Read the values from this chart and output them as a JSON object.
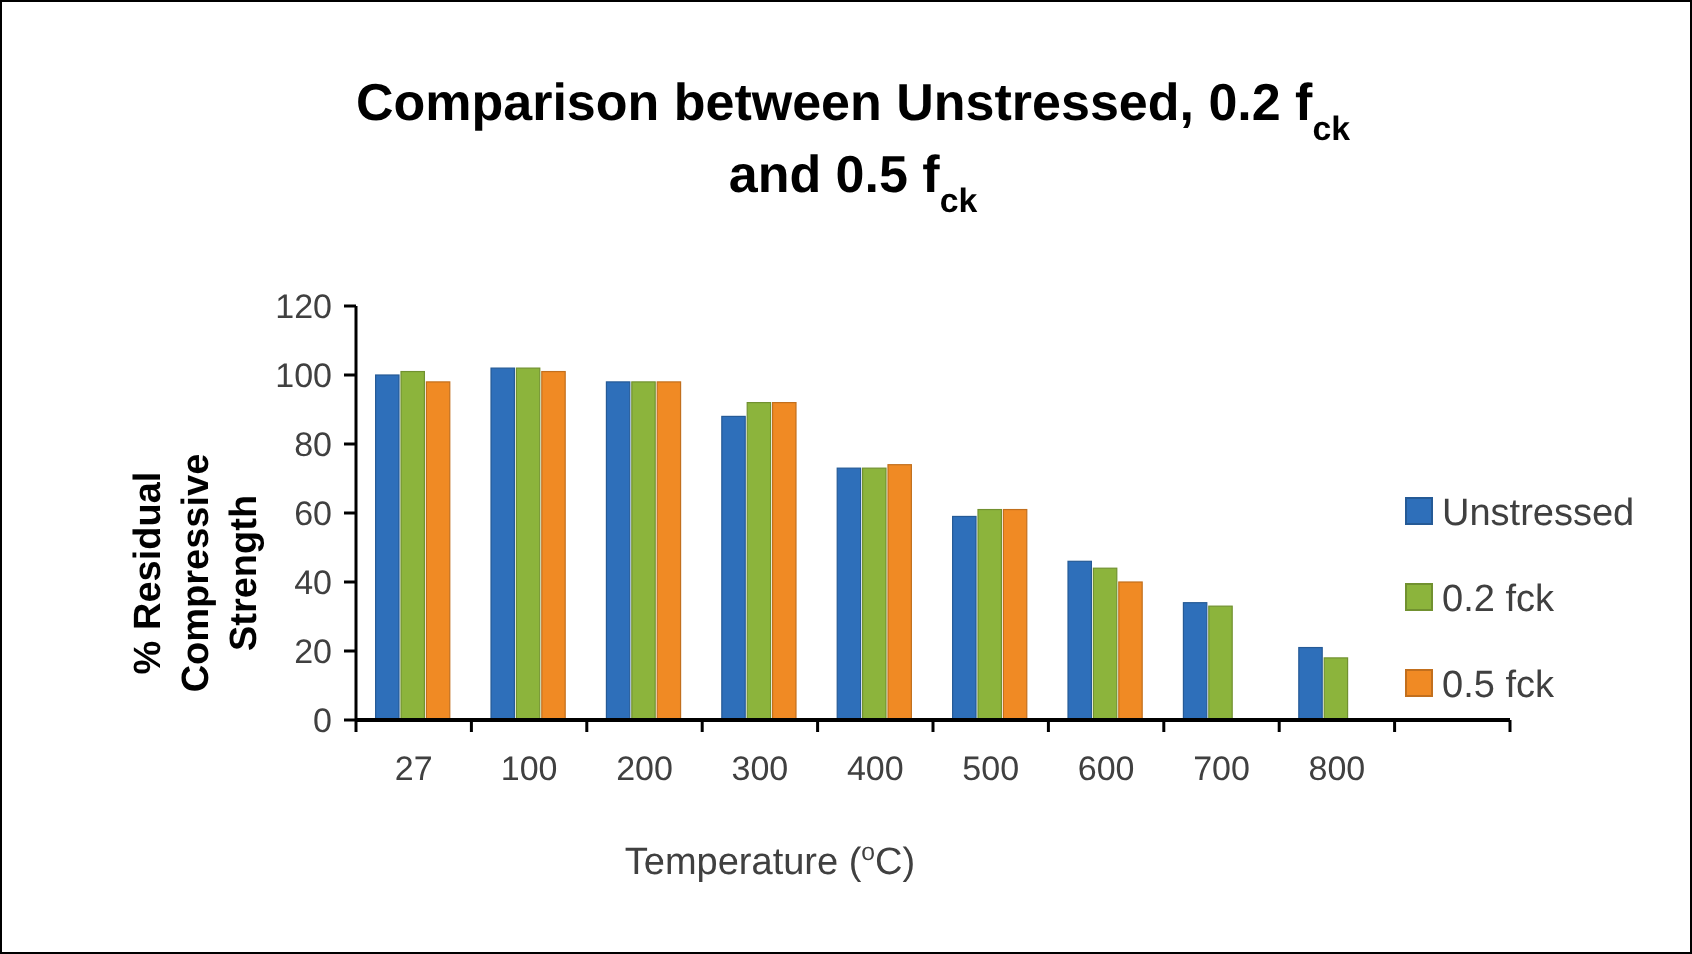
{
  "chart_data": {
    "type": "bar",
    "title": "Comparison between Unstressed,  0.2 f$_{ck}$ and 0.5 f$_{ck}$",
    "xlabel": "Temperature ($^{o}$C)",
    "ylabel": "% Residual Compressive Strength",
    "categories": [
      "27",
      "100",
      "200",
      "300",
      "400",
      "500",
      "600",
      "700",
      "800",
      null
    ],
    "series": [
      {
        "name": "Unstressed",
        "color": "#2e6fba",
        "values": [
          100,
          102,
          98,
          88,
          73,
          59,
          46,
          34,
          21,
          null
        ]
      },
      {
        "name": "0.2 fck",
        "color": "#8cb43c",
        "values": [
          101,
          102,
          98,
          92,
          73,
          61,
          44,
          33,
          18,
          null
        ]
      },
      {
        "name": "0.5 fck",
        "color": "#f08a24",
        "values": [
          98,
          101,
          98,
          92,
          74,
          61,
          40,
          null,
          null,
          null
        ]
      }
    ],
    "ylim": [
      0,
      120
    ],
    "yticks": [
      0,
      20,
      40,
      60,
      80,
      100,
      120
    ],
    "grid": false,
    "legend": "right"
  }
}
